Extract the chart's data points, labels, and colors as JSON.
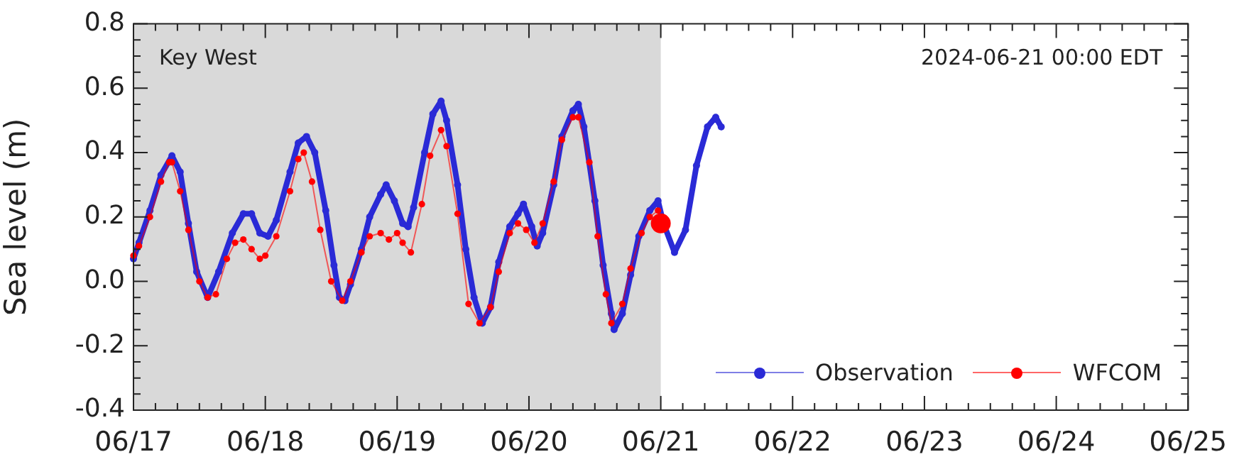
{
  "chart_data": {
    "type": "line",
    "ylabel": "Sea level (m)",
    "xlim": [
      "--06-17",
      "--06-25"
    ],
    "xticks": [
      {
        "value": "--06-17",
        "label": "06/17"
      },
      {
        "value": "--06-17T04:00",
        "label": null
      },
      {
        "value": "--06-17T08:00",
        "label": null
      },
      {
        "value": "--06-17T12:00",
        "label": null
      },
      {
        "value": "--06-17T16:00",
        "label": null
      },
      {
        "value": "--06-17T20:00",
        "label": null
      },
      {
        "value": "--06-18",
        "label": "06/18"
      },
      {
        "value": "--06-18T04:00",
        "label": null
      },
      {
        "value": "--06-18T08:00",
        "label": null
      },
      {
        "value": "--06-18T12:00",
        "label": null
      },
      {
        "value": "--06-18T16:00",
        "label": null
      },
      {
        "value": "--06-18T20:00",
        "label": null
      },
      {
        "value": "--06-19",
        "label": "06/19"
      },
      {
        "value": "--06-19T04:00",
        "label": null
      },
      {
        "value": "--06-19T08:00",
        "label": null
      },
      {
        "value": "--06-19T12:00",
        "label": null
      },
      {
        "value": "--06-19T16:00",
        "label": null
      },
      {
        "value": "--06-19T20:00",
        "label": null
      },
      {
        "value": "--06-20",
        "label": "06/20"
      },
      {
        "value": "--06-20T04:00",
        "label": null
      },
      {
        "value": "--06-20T08:00",
        "label": null
      },
      {
        "value": "--06-20T12:00",
        "label": null
      },
      {
        "value": "--06-20T16:00",
        "label": null
      },
      {
        "value": "--06-20T20:00",
        "label": null
      },
      {
        "value": "--06-21",
        "label": "06/21"
      },
      {
        "value": "--06-21T04:00",
        "label": null
      },
      {
        "value": "--06-21T08:00",
        "label": null
      },
      {
        "value": "--06-21T12:00",
        "label": null
      },
      {
        "value": "--06-21T16:00",
        "label": null
      },
      {
        "value": "--06-21T20:00",
        "label": null
      },
      {
        "value": "--06-22",
        "label": "06/22"
      },
      {
        "value": "--06-22T04:00",
        "label": null
      },
      {
        "value": "--06-22T08:00",
        "label": null
      },
      {
        "value": "--06-22T12:00",
        "label": null
      },
      {
        "value": "--06-22T16:00",
        "label": null
      },
      {
        "value": "--06-22T20:00",
        "label": null
      },
      {
        "value": "--06-23",
        "label": "06/23"
      },
      {
        "value": "--06-23T04:00",
        "label": null
      },
      {
        "value": "--06-23T08:00",
        "label": null
      },
      {
        "value": "--06-23T12:00",
        "label": null
      },
      {
        "value": "--06-23T16:00",
        "label": null
      },
      {
        "value": "--06-23T20:00",
        "label": null
      },
      {
        "value": "--06-24",
        "label": "06/24"
      },
      {
        "value": "--06-24T04:00",
        "label": null
      },
      {
        "value": "--06-24T08:00",
        "label": null
      },
      {
        "value": "--06-24T12:00",
        "label": null
      },
      {
        "value": "--06-24T16:00",
        "label": null
      },
      {
        "value": "--06-24T20:00",
        "label": null
      },
      {
        "value": "--06-25",
        "label": "06/25"
      }
    ],
    "ylim": [
      -0.4,
      0.8
    ],
    "yticks": [
      {
        "value": -0.4,
        "label": "-0.4"
      },
      {
        "value": -0.35,
        "label": null
      },
      {
        "value": -0.3,
        "label": null
      },
      {
        "value": -0.25,
        "label": null
      },
      {
        "value": -0.2,
        "label": "-0.2"
      },
      {
        "value": -0.15,
        "label": null
      },
      {
        "value": -0.1,
        "label": null
      },
      {
        "value": -0.05,
        "label": null
      },
      {
        "value": 0,
        "label": "0.0"
      },
      {
        "value": 0.05,
        "label": null
      },
      {
        "value": 0.1,
        "label": null
      },
      {
        "value": 0.15,
        "label": null
      },
      {
        "value": 0.2,
        "label": "0.2"
      },
      {
        "value": 0.25,
        "label": null
      },
      {
        "value": 0.3,
        "label": null
      },
      {
        "value": 0.35,
        "label": null
      },
      {
        "value": 0.4,
        "label": "0.4"
      },
      {
        "value": 0.45,
        "label": null
      },
      {
        "value": 0.5,
        "label": null
      },
      {
        "value": 0.55,
        "label": null
      },
      {
        "value": 0.6,
        "label": "0.6"
      },
      {
        "value": 0.65,
        "label": null
      },
      {
        "value": 0.7,
        "label": null
      },
      {
        "value": 0.75,
        "label": null
      },
      {
        "value": 0.8,
        "label": "0.8"
      }
    ],
    "grid": false,
    "legend": "bottom right",
    "marker": "circle",
    "line_style": "solid",
    "bands": [
      {
        "axis": "x",
        "from": "--06-17",
        "to": "--06-21",
        "color": "#d9d9d9"
      }
    ],
    "annotations": [
      "Key West",
      "2024-06-21 00:00 EDT"
    ],
    "series": [
      {
        "name": "Observation",
        "color": "#2a2ad6",
        "x": [
          "--06-17T00:00",
          "--06-17T01:00",
          "--06-17T03:00",
          "--06-17T05:00",
          "--06-17T07:00",
          "--06-17T08:30",
          "--06-17T10:00",
          "--06-17T11:30",
          "--06-17T13:30",
          "--06-17T15:30",
          "--06-17T18:00",
          "--06-17T20:00",
          "--06-17T21:30",
          "--06-17T23:00",
          "--06-18T00:30",
          "--06-18T02:00",
          "--06-18T04:30",
          "--06-18T06:00",
          "--06-18T07:30",
          "--06-18T09:00",
          "--06-18T11:00",
          "--06-18T12:30",
          "--06-18T13:30",
          "--06-18T14:30",
          "--06-18T15:30",
          "--06-18T17:30",
          "--06-18T19:00",
          "--06-18T21:00",
          "--06-18T22:00",
          "--06-18T23:30",
          "--06-19T01:00",
          "--06-19T02:00",
          "--06-19T03:00",
          "--06-19T05:00",
          "--06-19T06:30",
          "--06-19T08:00",
          "--06-19T09:00",
          "--06-19T11:00",
          "--06-19T12:30",
          "--06-19T14:00",
          "--06-19T15:30",
          "--06-19T17:00",
          "--06-19T18:30",
          "--06-19T20:30",
          "--06-19T22:00",
          "--06-19T23:00",
          "--06-20T00:30",
          "--06-20T01:30",
          "--06-20T02:30",
          "--06-20T04:30",
          "--06-20T06:00",
          "--06-20T08:00",
          "--06-20T09:00",
          "--06-20T10:00",
          "--06-20T12:00",
          "--06-20T13:30",
          "--06-20T15:00",
          "--06-20T15:30",
          "--06-20T17:00",
          "--06-20T18:30",
          "--06-20T20:00",
          "--06-20T22:00",
          "--06-20T23:30",
          "--06-21T00:30",
          "--06-21T02:30",
          "--06-21T04:30",
          "--06-21T06:30",
          "--06-21T08:30",
          "--06-21T10:00",
          "--06-21T11:00"
        ],
        "values": [
          0.07,
          0.12,
          0.22,
          0.33,
          0.39,
          0.34,
          0.18,
          0.03,
          -0.05,
          0.03,
          0.15,
          0.21,
          0.21,
          0.15,
          0.14,
          0.19,
          0.34,
          0.43,
          0.45,
          0.4,
          0.22,
          0.05,
          -0.05,
          -0.06,
          -0.01,
          0.1,
          0.2,
          0.27,
          0.3,
          0.25,
          0.18,
          0.17,
          0.23,
          0.4,
          0.52,
          0.56,
          0.5,
          0.3,
          0.1,
          -0.05,
          -0.13,
          -0.08,
          0.06,
          0.17,
          0.21,
          0.24,
          0.17,
          0.11,
          0.15,
          0.3,
          0.45,
          0.53,
          0.55,
          0.48,
          0.25,
          0.05,
          -0.1,
          -0.15,
          -0.1,
          0.02,
          0.14,
          0.22,
          0.25,
          0.18,
          0.09,
          0.16,
          0.36,
          0.48,
          0.51,
          0.48
        ]
      },
      {
        "name": "WFCOM",
        "color": "#ff0000",
        "x": [
          "--06-17T00:00",
          "--06-17T01:00",
          "--06-17T03:00",
          "--06-17T05:00",
          "--06-17T06:30",
          "--06-17T07:00",
          "--06-17T08:30",
          "--06-17T10:00",
          "--06-17T12:00",
          "--06-17T13:30",
          "--06-17T15:00",
          "--06-17T17:00",
          "--06-17T18:30",
          "--06-17T20:00",
          "--06-17T21:30",
          "--06-17T23:00",
          "--06-18T00:00",
          "--06-18T02:00",
          "--06-18T04:30",
          "--06-18T06:00",
          "--06-18T07:00",
          "--06-18T08:30",
          "--06-18T10:00",
          "--06-18T12:00",
          "--06-18T14:00",
          "--06-18T15:30",
          "--06-18T17:30",
          "--06-18T19:00",
          "--06-18T21:00",
          "--06-18T22:30",
          "--06-19T00:00",
          "--06-19T01:00",
          "--06-19T02:30",
          "--06-19T04:30",
          "--06-19T06:00",
          "--06-19T08:00",
          "--06-19T09:00",
          "--06-19T11:00",
          "--06-19T13:00",
          "--06-19T15:00",
          "--06-19T17:00",
          "--06-19T18:30",
          "--06-19T20:30",
          "--06-19T22:00",
          "--06-19T23:30",
          "--06-20T01:00",
          "--06-20T02:30",
          "--06-20T04:30",
          "--06-20T06:00",
          "--06-20T08:00",
          "--06-20T09:00",
          "--06-20T11:00",
          "--06-20T12:30",
          "--06-20T14:00",
          "--06-20T15:00",
          "--06-20T17:00",
          "--06-20T18:30",
          "--06-20T20:30",
          "--06-20T22:00",
          "--06-20T23:30"
        ],
        "values": [
          0.08,
          0.11,
          0.2,
          0.31,
          0.37,
          0.37,
          0.28,
          0.16,
          0,
          -0.05,
          -0.04,
          0.07,
          0.12,
          0.13,
          0.1,
          0.07,
          0.08,
          0.14,
          0.28,
          0.38,
          0.4,
          0.31,
          0.16,
          0,
          -0.06,
          0,
          0.09,
          0.14,
          0.15,
          0.13,
          0.15,
          0.12,
          0.09,
          0.24,
          0.39,
          0.47,
          0.42,
          0.21,
          -0.07,
          -0.13,
          -0.08,
          0.03,
          0.15,
          0.18,
          0.16,
          0.12,
          0.18,
          0.31,
          0.44,
          0.51,
          0.51,
          0.37,
          0.14,
          -0.04,
          -0.13,
          -0.07,
          0.04,
          0.15,
          0.2,
          0.22
        ]
      },
      {
        "type": "scatter",
        "color": "#ff0000",
        "x": [
          "--06-21T00:00"
        ],
        "values": [
          0.18
        ]
      }
    ]
  }
}
